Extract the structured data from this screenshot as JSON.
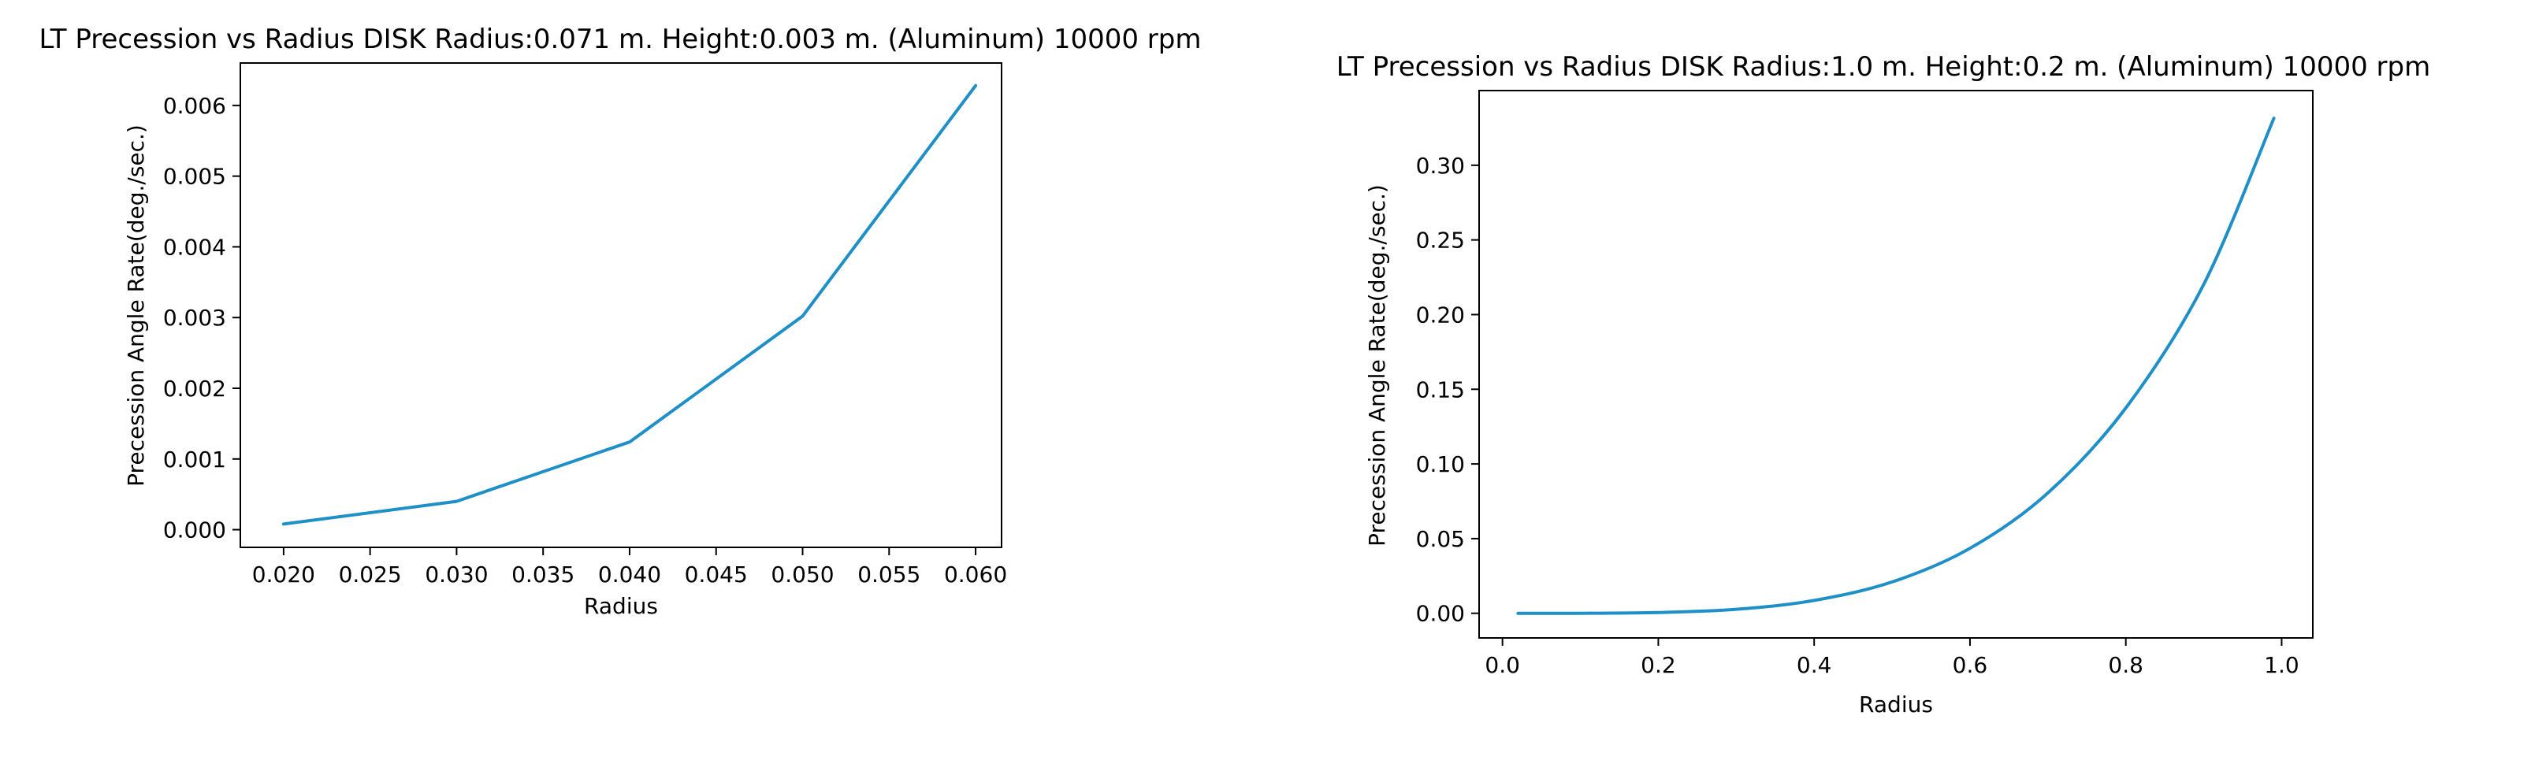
{
  "chart_data": [
    {
      "type": "line",
      "title": "LT Precession vs Radius DISK Radius:0.071 m. Height:0.003 m. (Aluminum) 10000 rpm",
      "xlabel": "Radius",
      "ylabel": "Precession Angle Rate(deg./sec.)",
      "xlim": [
        0.0175,
        0.0615
      ],
      "ylim": [
        -0.00025,
        0.0066
      ],
      "xticks": [
        0.02,
        0.025,
        0.03,
        0.035,
        0.04,
        0.045,
        0.05,
        0.055,
        0.06
      ],
      "xtick_labels": [
        "0.020",
        "0.025",
        "0.030",
        "0.035",
        "0.040",
        "0.045",
        "0.050",
        "0.055",
        "0.060"
      ],
      "yticks": [
        0,
        0.001,
        0.002,
        0.003,
        0.004,
        0.005,
        0.006
      ],
      "ytick_labels": [
        "0.000",
        "0.001",
        "0.002",
        "0.003",
        "0.004",
        "0.005",
        "0.006"
      ],
      "grid": false,
      "color": "#1f8fc8",
      "series": [
        {
          "x": [
            0.02,
            0.03,
            0.04,
            0.05,
            0.06
          ],
          "values": [
            8e-05,
            0.0004,
            0.00124,
            0.00302,
            0.00628
          ]
        }
      ]
    },
    {
      "type": "line",
      "title": "LT Precession vs Radius DISK Radius:1.0 m. Height:0.2 m. (Aluminum) 10000 rpm",
      "xlabel": "Radius",
      "ylabel": "Precession Angle Rate(deg./sec.)",
      "xlim": [
        -0.03,
        1.04
      ],
      "ylim": [
        -0.0165,
        0.35
      ],
      "xticks": [
        0,
        0.2,
        0.4,
        0.6,
        0.8,
        1.0
      ],
      "xtick_labels": [
        "0.0",
        "0.2",
        "0.4",
        "0.6",
        "0.8",
        "1.0"
      ],
      "yticks": [
        0,
        0.05,
        0.1,
        0.15,
        0.2,
        0.25,
        0.3
      ],
      "ytick_labels": [
        "0.00",
        "0.05",
        "0.10",
        "0.15",
        "0.20",
        "0.25",
        "0.30"
      ],
      "grid": false,
      "color": "#1f8fc8",
      "series": [
        {
          "x": [
            0.02,
            0.1,
            0.2,
            0.3,
            0.4,
            0.5,
            0.6,
            0.7,
            0.8,
            0.9,
            0.99
          ],
          "values": [
            0.0,
            0.0,
            0.0005,
            0.0027,
            0.0086,
            0.021,
            0.0435,
            0.0806,
            0.1375,
            0.2203,
            0.3315
          ]
        }
      ]
    }
  ]
}
